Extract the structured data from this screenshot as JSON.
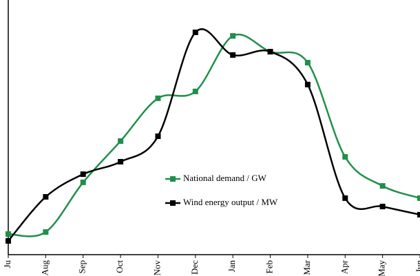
{
  "chart_data": {
    "type": "line",
    "categories": [
      "Ju",
      "Aug",
      "Sep",
      "Oct",
      "Nov",
      "Dec",
      "Jan",
      "Feb",
      "Mar",
      "Apr",
      "May",
      "Jun"
    ],
    "series": [
      {
        "name": "National demand / GW",
        "color": "#1f8f4a",
        "values": [
          8.1,
          8.9,
          28.4,
          44.6,
          61.4,
          64.1,
          85.9,
          79.7,
          75.4,
          38.4,
          27.0,
          22.2
        ]
      },
      {
        "name": "Wind energy output / MW",
        "color": "#000000",
        "values": [
          5.4,
          22.7,
          31.6,
          36.5,
          46.5,
          87.3,
          78.4,
          79.7,
          66.8,
          22.2,
          18.9,
          15.7
        ]
      }
    ],
    "ylim": [
      0,
      100
    ]
  }
}
